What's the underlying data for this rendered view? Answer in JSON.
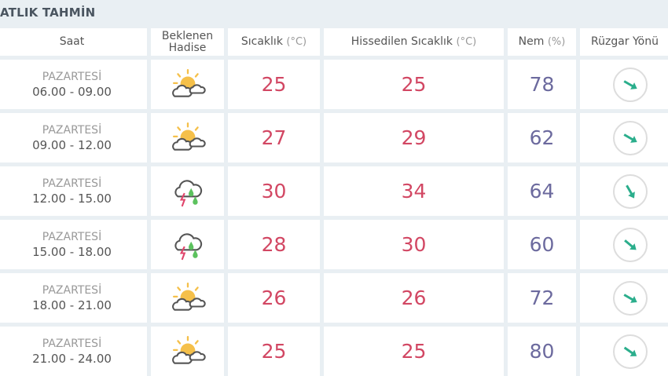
{
  "title": "ATLIK TAHMİN",
  "headers": {
    "saat": "Saat",
    "hadise1": "Beklenen",
    "hadise2": "Hadise",
    "sicaklik": "Sıcaklık",
    "sicaklik_unit": "(°C)",
    "hissedilen": "Hissedilen Sıcaklık",
    "hissedilen_unit": "(°C)",
    "nem": "Nem",
    "nem_unit": "(%)",
    "ruzgar": "Rüzgar Yönü"
  },
  "colors": {
    "temp": "#d24763",
    "humidity": "#6c6a9e",
    "wind_arrow": "#2bae8c"
  },
  "rows": [
    {
      "day": "PAZARTESİ",
      "time": "06.00 - 09.00",
      "icon": "partly-cloudy-icon",
      "temp": "25",
      "feels": "25",
      "humidity": "78",
      "wind_rotation_deg": 30
    },
    {
      "day": "PAZARTESİ",
      "time": "09.00 - 12.00",
      "icon": "partly-cloudy-icon",
      "temp": "27",
      "feels": "29",
      "humidity": "62",
      "wind_rotation_deg": 30
    },
    {
      "day": "PAZARTESİ",
      "time": "12.00 - 15.00",
      "icon": "thunderstorm-icon",
      "temp": "30",
      "feels": "34",
      "humidity": "64",
      "wind_rotation_deg": 60
    },
    {
      "day": "PAZARTESİ",
      "time": "15.00 - 18.00",
      "icon": "thunderstorm-icon",
      "temp": "28",
      "feels": "30",
      "humidity": "60",
      "wind_rotation_deg": 40
    },
    {
      "day": "PAZARTESİ",
      "time": "18.00 - 21.00",
      "icon": "partly-cloudy-icon",
      "temp": "26",
      "feels": "26",
      "humidity": "72",
      "wind_rotation_deg": 30
    },
    {
      "day": "PAZARTESİ",
      "time": "21.00 - 24.00",
      "icon": "partly-cloudy-icon",
      "temp": "25",
      "feels": "25",
      "humidity": "80",
      "wind_rotation_deg": 35
    }
  ]
}
